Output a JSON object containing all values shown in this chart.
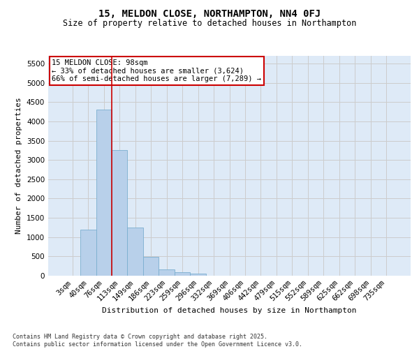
{
  "title": "15, MELDON CLOSE, NORTHAMPTON, NN4 0FJ",
  "subtitle": "Size of property relative to detached houses in Northampton",
  "xlabel": "Distribution of detached houses by size in Northampton",
  "ylabel": "Number of detached properties",
  "footer_line1": "Contains HM Land Registry data © Crown copyright and database right 2025.",
  "footer_line2": "Contains public sector information licensed under the Open Government Licence v3.0.",
  "categories": [
    "3sqm",
    "40sqm",
    "76sqm",
    "113sqm",
    "149sqm",
    "186sqm",
    "223sqm",
    "259sqm",
    "296sqm",
    "332sqm",
    "369sqm",
    "406sqm",
    "442sqm",
    "479sqm",
    "515sqm",
    "552sqm",
    "589sqm",
    "625sqm",
    "662sqm",
    "698sqm",
    "735sqm"
  ],
  "values": [
    0,
    1200,
    4300,
    3250,
    1250,
    480,
    170,
    90,
    50,
    0,
    0,
    0,
    0,
    0,
    0,
    0,
    0,
    0,
    0,
    0,
    0
  ],
  "bar_color": "#b8d0ea",
  "bar_edge_color": "#7aaecf",
  "vline_x_index": 2.5,
  "vline_color": "#cc0000",
  "annotation_text": "15 MELDON CLOSE: 98sqm\n← 33% of detached houses are smaller (3,624)\n66% of semi-detached houses are larger (7,289) →",
  "annotation_box_color": "#ffffff",
  "annotation_box_edge": "#cc0000",
  "ylim": [
    0,
    5700
  ],
  "yticks": [
    0,
    500,
    1000,
    1500,
    2000,
    2500,
    3000,
    3500,
    4000,
    4500,
    5000,
    5500
  ],
  "grid_color": "#cccccc",
  "bg_color": "#deeaf7",
  "fig_bg": "#ffffff",
  "title_fontsize": 10,
  "subtitle_fontsize": 8.5,
  "tick_fontsize": 7.5,
  "axis_label_fontsize": 8,
  "footer_fontsize": 6
}
